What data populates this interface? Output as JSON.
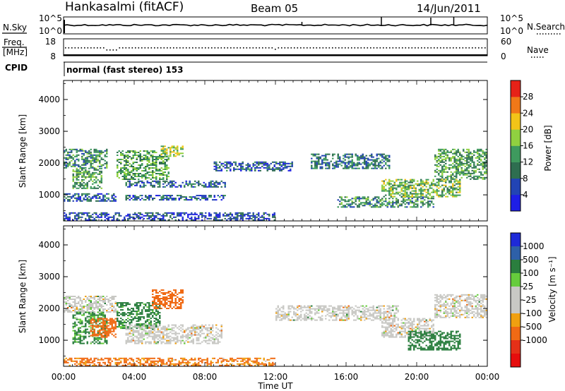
{
  "header": {
    "station": "Hankasalmi (fitACF)",
    "beam": "Beam 05",
    "date": "14/Jun/2011"
  },
  "noise_panel": {
    "left_label": "N.Sky",
    "right_label": "N.Search",
    "left_ticks": [
      "10^5",
      "10^0"
    ],
    "right_ticks": [
      "10^5",
      "10^0"
    ]
  },
  "freq_panel": {
    "left_label_1": "Freq.",
    "left_label_2": "[MHz]",
    "right_label": "Nave",
    "left_ticks": [
      "18",
      "8"
    ],
    "right_ticks": [
      "60",
      "0"
    ]
  },
  "cpid": {
    "label": "CPID",
    "text": "normal (fast stereo) 153"
  },
  "colors": {
    "power_scale": [
      "#1e1ee6",
      "#2244b4",
      "#2e6e50",
      "#3e9a5e",
      "#90d040",
      "#f2c418",
      "#f07818",
      "#e62218"
    ],
    "velocity_scale": [
      "#1e2ad8",
      "#2e60a8",
      "#2a7e3e",
      "#66cc3c",
      "#c8c8c4",
      "#c8c8c4",
      "#f0a010",
      "#f06a14",
      "#e43018",
      "#e60d0d"
    ]
  },
  "chart_data": [
    {
      "type": "heatmap",
      "title": "",
      "ylabel": "Slant Range [km]",
      "xlabel": "",
      "x_range_hours": [
        0,
        24
      ],
      "ylim": [
        180,
        4600
      ],
      "yticks": [
        "1000",
        "2000",
        "3000",
        "4000"
      ],
      "colorbar": {
        "label": "Power [dB]",
        "ticks": [
          "4",
          "8",
          "12",
          "16",
          "20",
          "24",
          "28"
        ],
        "range": [
          0,
          32
        ]
      },
      "regions": [
        {
          "t0": 0.0,
          "t1": 2.5,
          "r0": 1850,
          "r1": 2450,
          "level": 12
        },
        {
          "t0": 0.5,
          "t1": 2.2,
          "r0": 1200,
          "r1": 1850,
          "level": 14
        },
        {
          "t0": 0.0,
          "t1": 3.0,
          "r0": 800,
          "r1": 1050,
          "level": 8
        },
        {
          "t0": 3.0,
          "t1": 6.0,
          "r0": 1500,
          "r1": 2400,
          "level": 14
        },
        {
          "t0": 5.5,
          "t1": 6.8,
          "r0": 2200,
          "r1": 2550,
          "level": 18
        },
        {
          "t0": 3.5,
          "t1": 9.2,
          "r0": 1250,
          "r1": 1450,
          "level": 8
        },
        {
          "t0": 3.5,
          "t1": 9.2,
          "r0": 850,
          "r1": 1000,
          "level": 8
        },
        {
          "t0": 8.5,
          "t1": 13.0,
          "r0": 1750,
          "r1": 2050,
          "level": 7
        },
        {
          "t0": 14.0,
          "t1": 18.5,
          "r0": 1850,
          "r1": 2300,
          "level": 10
        },
        {
          "t0": 15.5,
          "t1": 21.0,
          "r0": 600,
          "r1": 950,
          "level": 12
        },
        {
          "t0": 18.0,
          "t1": 22.5,
          "r0": 950,
          "r1": 1500,
          "level": 16
        },
        {
          "t0": 21.0,
          "t1": 24.0,
          "r0": 1500,
          "r1": 2450,
          "level": 14
        },
        {
          "t0": 0.0,
          "t1": 12.0,
          "r0": 200,
          "r1": 450,
          "level": 6
        }
      ]
    },
    {
      "type": "heatmap",
      "title": "",
      "ylabel": "Slant Range [km]",
      "xlabel": "Time UT",
      "x_range_hours": [
        0,
        24
      ],
      "ylim": [
        180,
        4600
      ],
      "xticks": [
        "00:00",
        "04:00",
        "08:00",
        "12:00",
        "16:00",
        "20:00",
        "00:00"
      ],
      "yticks": [
        "1000",
        "2000",
        "3000",
        "4000"
      ],
      "colorbar": {
        "label": "Velocity [m s⁻¹]",
        "ticks": [
          "1000",
          "500",
          "100",
          "25",
          "-25",
          "-100",
          "-500",
          "-1000"
        ]
      },
      "regions": [
        {
          "t0": 0.0,
          "t1": 3.0,
          "r0": 1900,
          "r1": 2400,
          "velocity": 0
        },
        {
          "t0": 0.5,
          "t1": 2.5,
          "r0": 900,
          "r1": 1900,
          "velocity": 150
        },
        {
          "t0": 1.5,
          "t1": 3.0,
          "r0": 1100,
          "r1": 1700,
          "velocity": -300
        },
        {
          "t0": 3.0,
          "t1": 5.5,
          "r0": 1400,
          "r1": 2200,
          "velocity": 200
        },
        {
          "t0": 5.0,
          "t1": 6.8,
          "r0": 2000,
          "r1": 2600,
          "velocity": -350
        },
        {
          "t0": 3.5,
          "t1": 9.0,
          "r0": 900,
          "r1": 1500,
          "velocity": 0
        },
        {
          "t0": 12.0,
          "t1": 19.0,
          "r0": 1650,
          "r1": 2100,
          "velocity": 0
        },
        {
          "t0": 18.0,
          "t1": 21.0,
          "r0": 1100,
          "r1": 1700,
          "velocity": 0
        },
        {
          "t0": 19.5,
          "t1": 22.5,
          "r0": 700,
          "r1": 1300,
          "velocity": 250
        },
        {
          "t0": 21.0,
          "t1": 24.0,
          "r0": 1700,
          "r1": 2450,
          "velocity": 0
        },
        {
          "t0": 0.0,
          "t1": 12.0,
          "r0": 200,
          "r1": 450,
          "velocity": -150
        }
      ]
    }
  ]
}
